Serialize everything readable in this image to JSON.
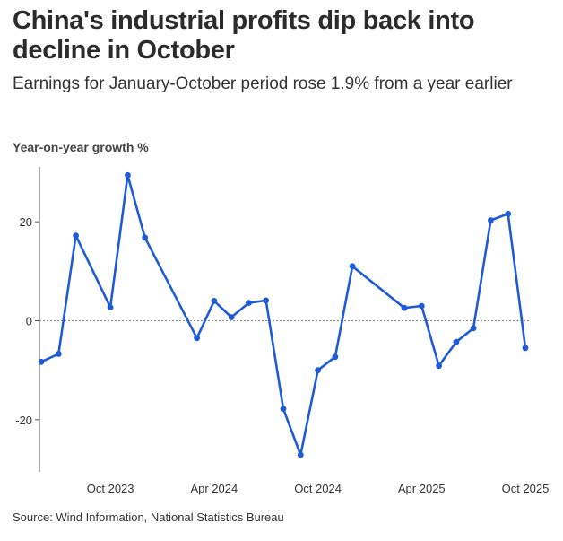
{
  "header": {
    "title": "China's industrial profits dip back into decline in October",
    "subtitle": "Earnings for January-October period rose 1.9% from a year earlier"
  },
  "footer": {
    "source": "Source: Wind Information, National Statistics Bureau"
  },
  "colors": {
    "line": "#1f5bd6",
    "axis": "#555555",
    "zero": "#888888"
  },
  "chart_data": {
    "type": "line",
    "title": "China's industrial profits dip back into decline in October",
    "ylabel": "Year-on-year growth %",
    "xlabel": "",
    "ylim": [
      -30,
      30
    ],
    "xlim": [
      0,
      28.5
    ],
    "yticks": [
      -20,
      0,
      20
    ],
    "ytick_labels": [
      "-20",
      "0",
      "20"
    ],
    "xticks": [
      {
        "i": 4,
        "label": "Oct 2023"
      },
      {
        "i": 10,
        "label": "Apr 2024"
      },
      {
        "i": 16,
        "label": "Oct 2024"
      },
      {
        "i": 22,
        "label": "Apr 2025"
      },
      {
        "i": 28,
        "label": "Oct 2025"
      }
    ],
    "series": [
      {
        "name": "Year-on-year growth %",
        "points": [
          {
            "i": 0,
            "y": -8.3
          },
          {
            "i": 1,
            "y": -6.7
          },
          {
            "i": 2,
            "y": 17.2
          },
          {
            "i": 4,
            "y": 2.7
          },
          {
            "i": 5,
            "y": 29.4
          },
          {
            "i": 6,
            "y": 16.8
          },
          {
            "i": 9,
            "y": -3.5
          },
          {
            "i": 10,
            "y": 4.0
          },
          {
            "i": 11,
            "y": 0.7
          },
          {
            "i": 12,
            "y": 3.6
          },
          {
            "i": 13,
            "y": 4.1
          },
          {
            "i": 14,
            "y": -17.8
          },
          {
            "i": 15,
            "y": -27.1
          },
          {
            "i": 16,
            "y": -10.0
          },
          {
            "i": 17,
            "y": -7.3
          },
          {
            "i": 18,
            "y": 11.0
          },
          {
            "i": 21,
            "y": 2.6
          },
          {
            "i": 22,
            "y": 3.0
          },
          {
            "i": 23,
            "y": -9.1
          },
          {
            "i": 24,
            "y": -4.3
          },
          {
            "i": 25,
            "y": -1.5
          },
          {
            "i": 26,
            "y": 20.3
          },
          {
            "i": 27,
            "y": 21.6
          },
          {
            "i": 28,
            "y": -5.5
          }
        ]
      }
    ]
  }
}
